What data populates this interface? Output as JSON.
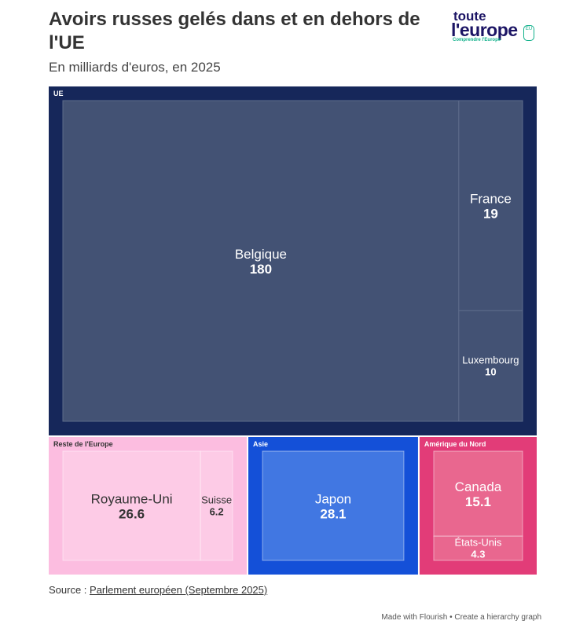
{
  "title": "Avoirs russes gelés dans et en dehors de l'UE",
  "subtitle": "En milliards d'euros, en 2025",
  "logo": {
    "line1": "toute",
    "line2": "l'europe",
    "tagline": "Comprendre l'Europe",
    "badge": "EU"
  },
  "source_prefix": "Source : ",
  "source_link": "Parlement européen (Septembre 2025)",
  "credit": "Made with Flourish • Create a hierarchy graph",
  "colors": {
    "ue_bg": "#16275a",
    "ue_tile": "#435274",
    "europe_bg": "#fcbde0",
    "europe_tile": "#fdcbe6",
    "asie_bg": "#1450d8",
    "asie_tile": "#4177e2",
    "na_bg": "#e23c78",
    "na_tile": "#e9678f"
  },
  "chart_data": {
    "type": "treemap",
    "title": "Avoirs russes gelés dans et en dehors de l'UE",
    "unit": "milliards d'euros",
    "groups": [
      {
        "name": "UE",
        "children": [
          {
            "name": "Belgique",
            "value": 180
          },
          {
            "name": "France",
            "value": 19
          },
          {
            "name": "Luxembourg",
            "value": 10
          }
        ]
      },
      {
        "name": "Reste de l'Europe",
        "children": [
          {
            "name": "Royaume-Uni",
            "value": 26.6
          },
          {
            "name": "Suisse",
            "value": 6.2
          }
        ]
      },
      {
        "name": "Asie",
        "children": [
          {
            "name": "Japon",
            "value": 28.1
          }
        ]
      },
      {
        "name": "Amérique du Nord",
        "children": [
          {
            "name": "Canada",
            "value": 15.1
          },
          {
            "name": "États-Unis",
            "value": 4.3
          }
        ]
      }
    ]
  }
}
